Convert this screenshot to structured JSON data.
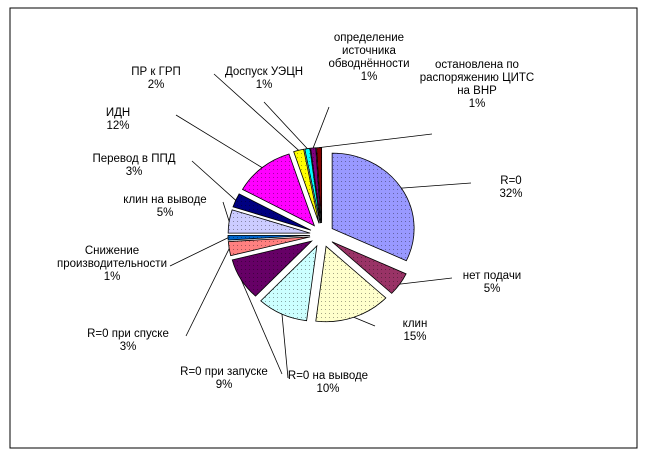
{
  "chart_data": {
    "type": "pie",
    "exploded": true,
    "pattern_fills": true,
    "legend": "none",
    "slices": [
      {
        "name": "R=0",
        "value": 32,
        "label": "32%",
        "color": "#9999ff"
      },
      {
        "name": "нет подачи",
        "value": 5,
        "label": "5%",
        "color": "#993366"
      },
      {
        "name": "клин",
        "value": 15,
        "label": "15%",
        "color": "#ffffcc"
      },
      {
        "name": "R=0 на выводе",
        "value": 10,
        "label": "10%",
        "color": "#ccffff"
      },
      {
        "name": "R=0 при запуске",
        "value": 9,
        "label": "9%",
        "color": "#660066"
      },
      {
        "name": "R=0 при спуске",
        "value": 3,
        "label": "3%",
        "color": "#ff8080"
      },
      {
        "name": "Снижение производительности",
        "value": 1,
        "label": "1%",
        "color": "#0066cc"
      },
      {
        "name": "клин на выводе",
        "value": 5,
        "label": "5%",
        "color": "#ccccff"
      },
      {
        "name": "Перевод в ППД",
        "value": 3,
        "label": "3%",
        "color": "#000080"
      },
      {
        "name": "ИДН",
        "value": 12,
        "label": "12%",
        "color": "#ff00ff"
      },
      {
        "name": "ПР к ГРП",
        "value": 2,
        "label": "2%",
        "color": "#ffff00"
      },
      {
        "name": "Доспуск УЭЦН",
        "value": 1,
        "label": "1%",
        "color": "#00ffff"
      },
      {
        "name": "определение источника обводнённости",
        "value": 1,
        "label": "1%",
        "color": "#800080"
      },
      {
        "name": "остановлена по распоряжению ЦИТС на ВНР",
        "value": 1,
        "label": "1%",
        "color": "#800000"
      }
    ]
  }
}
